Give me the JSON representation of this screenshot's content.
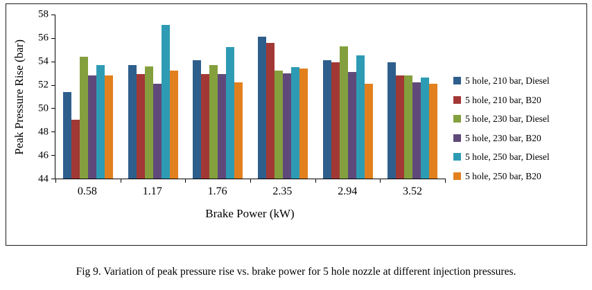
{
  "figure": {
    "caption": "Fig 9. Variation of peak pressure rise vs. brake power for 5 hole nozzle at different injection pressures."
  },
  "chart_data": {
    "type": "bar",
    "title": "",
    "xlabel": "Brake Power (kW)",
    "ylabel": "Peak Pressure Rise (bar)",
    "ylim": [
      44,
      58
    ],
    "yticks": [
      44,
      46,
      48,
      50,
      52,
      54,
      56,
      58
    ],
    "grid": false,
    "legend_position": "right",
    "categories": [
      "0.58",
      "1.17",
      "1.76",
      "2.35",
      "2.94",
      "3.52"
    ],
    "series": [
      {
        "name": "5 hole, 210 bar, Diesel",
        "color": "#2E5E8C",
        "values": [
          51.4,
          53.7,
          54.1,
          56.1,
          54.1,
          53.9
        ]
      },
      {
        "name": "5 hole, 210 bar, B20",
        "color": "#A23835",
        "values": [
          49.0,
          52.9,
          52.9,
          55.6,
          53.9,
          52.8
        ]
      },
      {
        "name": "5 hole, 230 bar, Diesel",
        "color": "#84A03E",
        "values": [
          54.4,
          53.6,
          53.7,
          53.2,
          55.3,
          52.8
        ]
      },
      {
        "name": "5 hole, 230 bar, B20",
        "color": "#5F497A",
        "values": [
          52.8,
          52.1,
          52.9,
          53.0,
          53.1,
          52.2
        ]
      },
      {
        "name": "5 hole, 250 bar, Diesel",
        "color": "#2E9BB4",
        "values": [
          53.7,
          57.1,
          55.2,
          53.5,
          54.5,
          52.6
        ]
      },
      {
        "name": "5 hole, 250 bar, B20",
        "color": "#E2801E",
        "values": [
          52.8,
          53.2,
          52.2,
          53.4,
          52.1,
          52.1
        ]
      }
    ]
  }
}
